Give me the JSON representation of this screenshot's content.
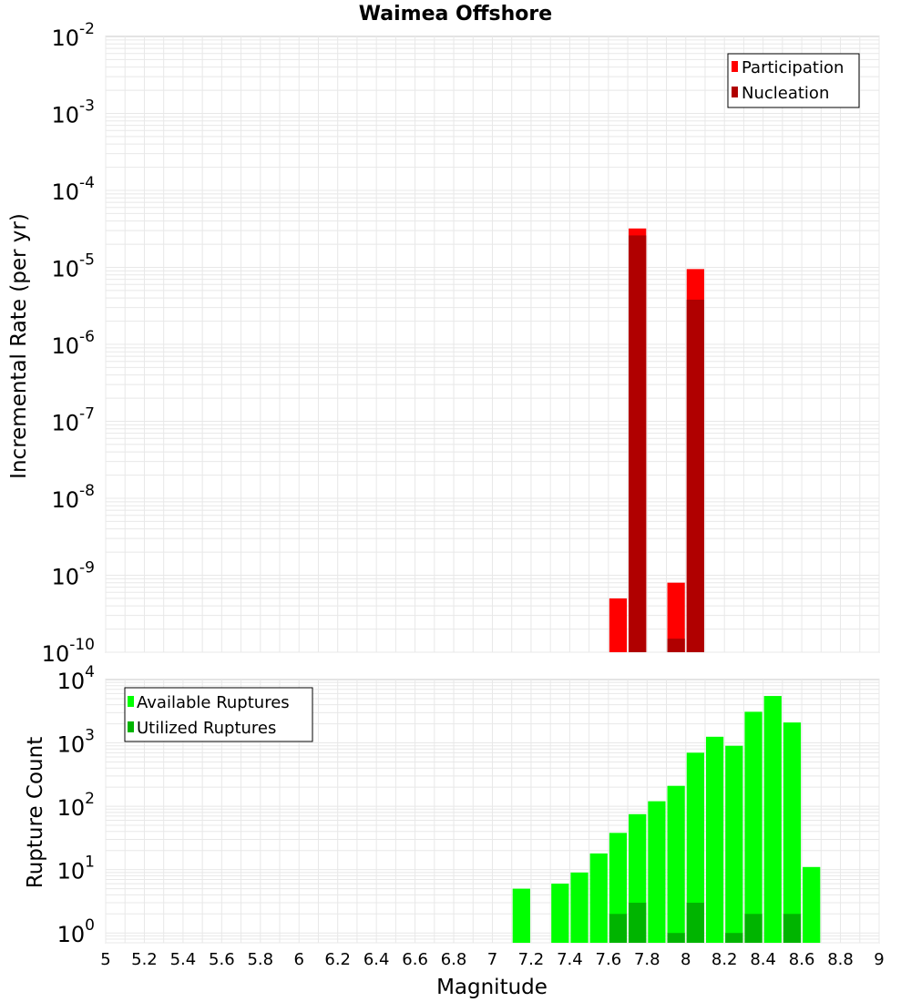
{
  "chart_data": [
    {
      "type": "bar",
      "title": "Waimea Offshore",
      "xlabel": "",
      "ylabel": "Incremental Rate (per yr)",
      "yscale": "log",
      "ylim": [
        1e-10,
        0.01
      ],
      "xlim": [
        5,
        9
      ],
      "ytick_labels": [
        {
          "base": "10",
          "exp": "-10"
        },
        {
          "base": "10",
          "exp": "-9"
        },
        {
          "base": "10",
          "exp": "-8"
        },
        {
          "base": "10",
          "exp": "-7"
        },
        {
          "base": "10",
          "exp": "-6"
        },
        {
          "base": "10",
          "exp": "-5"
        },
        {
          "base": "10",
          "exp": "-4"
        },
        {
          "base": "10",
          "exp": "-3"
        },
        {
          "base": "10",
          "exp": "-2"
        }
      ],
      "legend_position": "top-right",
      "series": [
        {
          "name": "Participation",
          "color": "#ff0000",
          "points": [
            {
              "x": 7.65,
              "y": 5e-10
            },
            {
              "x": 7.75,
              "y": 3.2e-05
            },
            {
              "x": 7.95,
              "y": 8e-10
            },
            {
              "x": 8.05,
              "y": 9.5e-06
            }
          ]
        },
        {
          "name": "Nucleation",
          "color": "#b00000",
          "points": [
            {
              "x": 7.75,
              "y": 2.6e-05
            },
            {
              "x": 7.95,
              "y": 1.5e-10
            },
            {
              "x": 8.05,
              "y": 3.8e-06
            }
          ]
        }
      ]
    },
    {
      "type": "bar",
      "title": "",
      "xlabel": "Magnitude",
      "ylabel": "Rupture Count",
      "yscale": "log",
      "ylim": [
        0.7,
        10000
      ],
      "xlim": [
        5,
        9
      ],
      "ytick_labels": [
        {
          "base": "10",
          "exp": "0",
          "value": 1
        },
        {
          "base": "10",
          "exp": "1",
          "value": 10
        },
        {
          "base": "10",
          "exp": "2",
          "value": 100
        },
        {
          "base": "10",
          "exp": "3",
          "value": 1000
        },
        {
          "base": "10",
          "exp": "4",
          "value": 10000
        }
      ],
      "xtick_labels": [
        "5",
        "5.2",
        "5.4",
        "5.6",
        "5.8",
        "6",
        "6.2",
        "6.4",
        "6.6",
        "6.8",
        "7",
        "7.2",
        "7.4",
        "7.6",
        "7.8",
        "8",
        "8.2",
        "8.4",
        "8.6",
        "8.8",
        "9"
      ],
      "legend_position": "top-left",
      "series": [
        {
          "name": "Available Ruptures",
          "color": "#00ff00",
          "points": [
            {
              "x": 7.15,
              "y": 5
            },
            {
              "x": 7.35,
              "y": 6
            },
            {
              "x": 7.45,
              "y": 9
            },
            {
              "x": 7.55,
              "y": 18
            },
            {
              "x": 7.65,
              "y": 38
            },
            {
              "x": 7.75,
              "y": 75
            },
            {
              "x": 7.85,
              "y": 120
            },
            {
              "x": 7.95,
              "y": 210
            },
            {
              "x": 8.05,
              "y": 700
            },
            {
              "x": 8.15,
              "y": 1250
            },
            {
              "x": 8.25,
              "y": 900
            },
            {
              "x": 8.35,
              "y": 3100
            },
            {
              "x": 8.45,
              "y": 5500
            },
            {
              "x": 8.55,
              "y": 2100
            },
            {
              "x": 8.65,
              "y": 11
            }
          ]
        },
        {
          "name": "Utilized Ruptures",
          "color": "#00b400",
          "points": [
            {
              "x": 7.65,
              "y": 2
            },
            {
              "x": 7.75,
              "y": 3
            },
            {
              "x": 7.95,
              "y": 1
            },
            {
              "x": 8.05,
              "y": 3
            },
            {
              "x": 8.25,
              "y": 1
            },
            {
              "x": 8.35,
              "y": 2
            },
            {
              "x": 8.55,
              "y": 2
            }
          ]
        }
      ]
    }
  ]
}
